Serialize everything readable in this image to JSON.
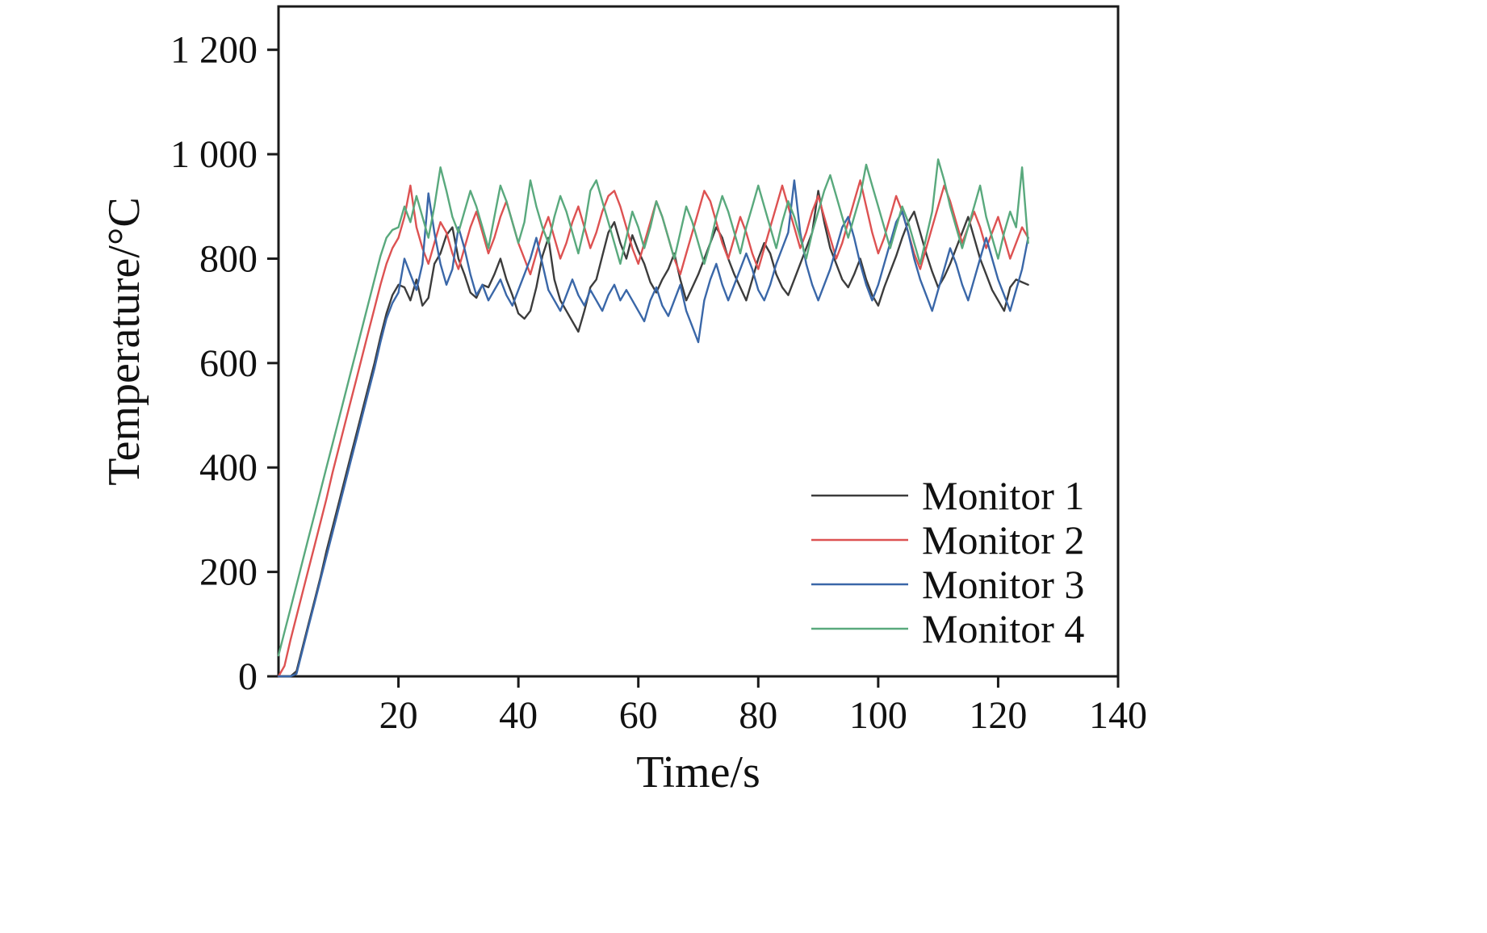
{
  "figure": {
    "kind": "scientific line chart",
    "background": "#ffffff",
    "border_color": "#1a1a1a"
  },
  "chart_data": {
    "type": "line",
    "title": "",
    "xlabel": "Time/s",
    "ylabel": "Temperature/°C",
    "xlim": [
      0,
      140
    ],
    "ylim": [
      0,
      1283
    ],
    "grid": false,
    "legend_position": "inside lower-right",
    "x_ticks": {
      "values": [
        20,
        40,
        60,
        80,
        100,
        120,
        140
      ],
      "labels": [
        "20",
        "40",
        "60",
        "80",
        "100",
        "120",
        "140"
      ]
    },
    "y_ticks": {
      "values": [
        0,
        200,
        400,
        600,
        800,
        1000,
        1200
      ],
      "labels": [
        "0",
        "200",
        "400",
        "600",
        "800",
        "1 000",
        "1 200"
      ]
    },
    "x_start": 0,
    "x_step": 1,
    "series": [
      {
        "name": "Monitor 1",
        "color": "#3c3c3c",
        "values": [
          0,
          0,
          0,
          10,
          55,
          100,
          145,
          190,
          240,
          285,
          330,
          375,
          420,
          465,
          510,
          555,
          600,
          650,
          695,
          730,
          750,
          745,
          720,
          760,
          710,
          725,
          790,
          810,
          845,
          860,
          800,
          770,
          735,
          725,
          750,
          745,
          770,
          800,
          760,
          730,
          695,
          685,
          700,
          745,
          805,
          840,
          760,
          720,
          700,
          680,
          660,
          700,
          745,
          760,
          805,
          850,
          870,
          830,
          800,
          845,
          815,
          790,
          755,
          735,
          760,
          780,
          810,
          760,
          720,
          745,
          770,
          800,
          830,
          860,
          840,
          800,
          770,
          745,
          720,
          760,
          800,
          830,
          810,
          770,
          745,
          730,
          760,
          790,
          820,
          850,
          930,
          870,
          820,
          790,
          760,
          745,
          770,
          800,
          760,
          730,
          710,
          745,
          775,
          805,
          840,
          870,
          890,
          850,
          810,
          775,
          745,
          765,
          790,
          820,
          850,
          880,
          840,
          800,
          770,
          740,
          720,
          700,
          745,
          760,
          755,
          750
        ]
      },
      {
        "name": "Monitor 2",
        "color": "#dd5252",
        "values": [
          0,
          20,
          70,
          115,
          160,
          205,
          250,
          295,
          340,
          390,
          435,
          480,
          525,
          570,
          615,
          660,
          705,
          750,
          790,
          820,
          840,
          880,
          940,
          860,
          820,
          790,
          830,
          870,
          850,
          810,
          780,
          820,
          860,
          890,
          850,
          810,
          840,
          880,
          910,
          870,
          830,
          800,
          770,
          810,
          850,
          880,
          840,
          800,
          830,
          870,
          900,
          860,
          820,
          850,
          890,
          920,
          930,
          900,
          860,
          820,
          790,
          830,
          870,
          910,
          880,
          840,
          800,
          770,
          810,
          850,
          890,
          930,
          910,
          870,
          830,
          800,
          840,
          880,
          850,
          810,
          780,
          820,
          860,
          900,
          940,
          900,
          860,
          820,
          850,
          890,
          920,
          880,
          840,
          800,
          830,
          870,
          910,
          950,
          900,
          850,
          810,
          840,
          880,
          920,
          890,
          850,
          810,
          780,
          820,
          860,
          900,
          940,
          910,
          870,
          830,
          860,
          890,
          860,
          820,
          850,
          880,
          840,
          800,
          830,
          860,
          840
        ]
      },
      {
        "name": "Monitor 3",
        "color": "#3a67a8",
        "values": [
          0,
          0,
          0,
          5,
          50,
          95,
          140,
          185,
          230,
          275,
          320,
          365,
          410,
          455,
          500,
          545,
          590,
          640,
          685,
          715,
          735,
          800,
          770,
          740,
          790,
          925,
          850,
          790,
          750,
          780,
          860,
          820,
          770,
          730,
          750,
          720,
          740,
          760,
          730,
          710,
          740,
          770,
          800,
          840,
          790,
          740,
          720,
          700,
          730,
          760,
          730,
          710,
          740,
          720,
          700,
          730,
          750,
          720,
          740,
          720,
          700,
          680,
          720,
          745,
          710,
          690,
          720,
          750,
          700,
          670,
          640,
          720,
          760,
          790,
          750,
          720,
          750,
          780,
          810,
          780,
          740,
          720,
          750,
          790,
          820,
          850,
          950,
          850,
          790,
          750,
          720,
          750,
          780,
          820,
          860,
          880,
          840,
          790,
          750,
          720,
          750,
          790,
          830,
          870,
          890,
          850,
          800,
          760,
          730,
          700,
          740,
          780,
          820,
          790,
          750,
          720,
          760,
          800,
          840,
          800,
          760,
          730,
          700,
          740,
          780,
          840
        ]
      },
      {
        "name": "Monitor 4",
        "color": "#59a97d",
        "values": [
          40,
          85,
          130,
          175,
          220,
          265,
          310,
          355,
          400,
          445,
          490,
          535,
          580,
          625,
          670,
          715,
          760,
          805,
          840,
          855,
          860,
          900,
          870,
          920,
          880,
          840,
          900,
          975,
          930,
          880,
          850,
          890,
          930,
          900,
          860,
          820,
          880,
          940,
          910,
          870,
          830,
          870,
          950,
          900,
          860,
          830,
          880,
          920,
          890,
          850,
          810,
          860,
          930,
          950,
          910,
          870,
          830,
          790,
          840,
          890,
          860,
          820,
          860,
          910,
          880,
          840,
          800,
          850,
          900,
          870,
          830,
          790,
          830,
          880,
          920,
          890,
          850,
          810,
          860,
          900,
          940,
          900,
          860,
          820,
          870,
          910,
          880,
          840,
          800,
          850,
          890,
          930,
          960,
          920,
          880,
          840,
          880,
          920,
          980,
          940,
          900,
          860,
          820,
          860,
          900,
          870,
          830,
          790,
          840,
          890,
          990,
          950,
          900,
          860,
          820,
          860,
          900,
          940,
          880,
          840,
          800,
          850,
          890,
          860,
          975,
          830
        ]
      }
    ]
  }
}
